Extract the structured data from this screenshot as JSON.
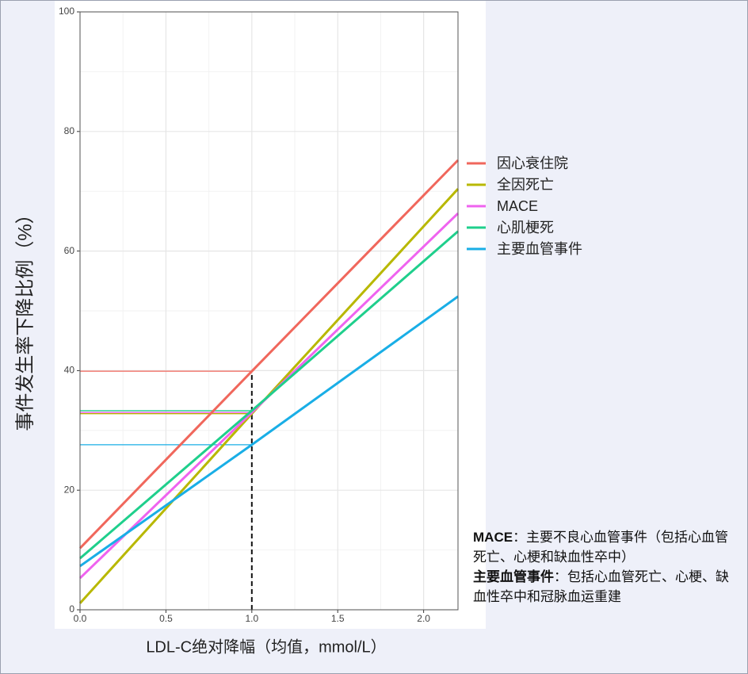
{
  "chart_data": {
    "type": "line",
    "x_label": "LDL-C绝对降幅（均值，mmol/L）",
    "y_label": "事件发生率下降比例（%）",
    "x": [
      0,
      1,
      2.2
    ],
    "series": [
      {
        "name": "因心衰住院",
        "color": "#f0675c",
        "values": [
          10.3,
          39.9,
          75.2
        ]
      },
      {
        "name": "全因死亡",
        "color": "#b8b800",
        "values": [
          1.1,
          32.8,
          70.4
        ]
      },
      {
        "name": "MACE",
        "color": "#ef63ef",
        "values": [
          5.3,
          33.0,
          66.3
        ]
      },
      {
        "name": "心肌梗死",
        "color": "#1fcf8c",
        "values": [
          8.6,
          33.3,
          63.3
        ]
      },
      {
        "name": "主要血管事件",
        "color": "#19aee6",
        "values": [
          7.3,
          27.6,
          52.4
        ]
      }
    ],
    "xlim": [
      0,
      2.2
    ],
    "ylim": [
      0,
      100
    ],
    "xticks": [
      {
        "value": 0,
        "label": "0.0"
      },
      {
        "value": 0.5,
        "label": "0.5"
      },
      {
        "value": 1,
        "label": "1.0"
      },
      {
        "value": 1.5,
        "label": "1.5"
      },
      {
        "value": 2,
        "label": "2.0"
      }
    ],
    "yticks": [
      0,
      20,
      40,
      60,
      80,
      100
    ],
    "grid": true,
    "legend": "right",
    "notes": [
      {
        "term": "MACE",
        "text": "：主要不良心血管事件（包括心血管死亡、心梗和缺血性卒中）"
      },
      {
        "term": "主要血管事件",
        "text": "：包括心血管死亡、心梗、缺血性卒中和冠脉血运重建"
      }
    ]
  }
}
